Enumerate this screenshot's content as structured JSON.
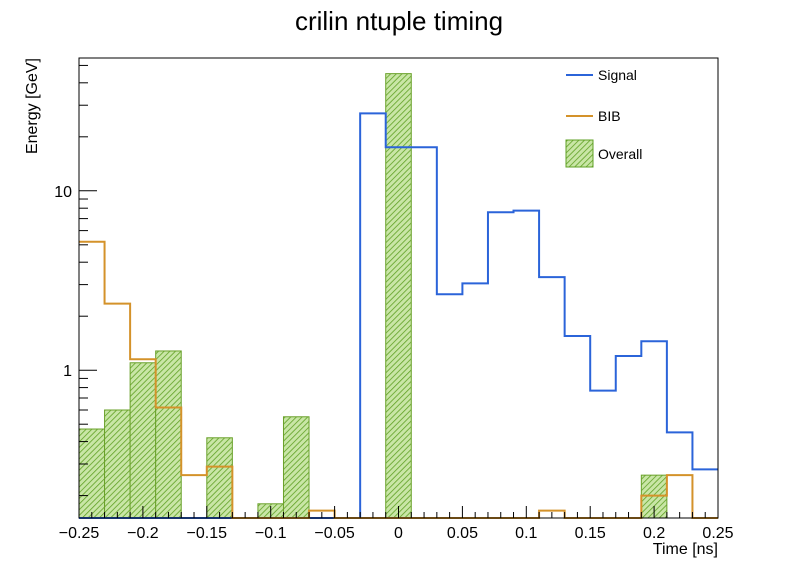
{
  "chart_data": {
    "type": "bar",
    "title": "crilin ntuple timing",
    "xlabel": "Time [ns]",
    "ylabel": "Energy [GeV]",
    "xlim": [
      -0.25,
      0.25
    ],
    "ylim": [
      0.15,
      55
    ],
    "yscale": "log",
    "bin_edges": [
      -0.25,
      -0.23,
      -0.21,
      -0.19,
      -0.17,
      -0.15,
      -0.13,
      -0.11,
      -0.09,
      -0.07,
      -0.05,
      -0.03,
      -0.01,
      0.01,
      0.03,
      0.05,
      0.07,
      0.09,
      0.11,
      0.13,
      0.15,
      0.17,
      0.19,
      0.21,
      0.23,
      0.25
    ],
    "x_ticks": [
      -0.25,
      -0.2,
      -0.15,
      -0.1,
      -0.05,
      0,
      0.05,
      0.1,
      0.15,
      0.2,
      0.25
    ],
    "x_tick_labels": [
      "−0.25",
      "−0.2",
      "−0.15",
      "−0.1",
      "−0.05",
      "0",
      "0.05",
      "0.1",
      "0.15",
      "0.2",
      "0.25"
    ],
    "y_ticks": [
      1,
      10
    ],
    "y_tick_labels": [
      "1",
      "10"
    ],
    "legend_position": "top-right",
    "series": [
      {
        "name": "Signal",
        "style": "step",
        "color": "#2b64d9",
        "values": [
          0,
          0,
          0,
          0,
          0,
          0,
          0,
          0,
          0,
          0,
          0,
          27,
          17.5,
          17.5,
          2.65,
          3.05,
          7.6,
          7.75,
          3.3,
          1.55,
          0.77,
          1.2,
          1.45,
          0.45,
          0.28
        ]
      },
      {
        "name": "BIB",
        "style": "step",
        "color": "#d4922a",
        "values": [
          5.2,
          2.35,
          1.15,
          0.62,
          0.26,
          0.29,
          0,
          0,
          0,
          0.165,
          0,
          0,
          0,
          0,
          0,
          0,
          0,
          0,
          0.165,
          0,
          0,
          0,
          0.2,
          0.26,
          0
        ]
      },
      {
        "name": "Overall",
        "style": "hatched-bar",
        "color": "#6aa12a",
        "values": [
          0.47,
          0.6,
          1.1,
          1.28,
          0,
          0.42,
          0,
          0.18,
          0.55,
          0,
          0,
          0,
          45,
          0,
          0,
          0,
          0,
          0,
          0,
          0,
          0,
          0,
          0.26,
          0,
          0
        ]
      }
    ]
  }
}
